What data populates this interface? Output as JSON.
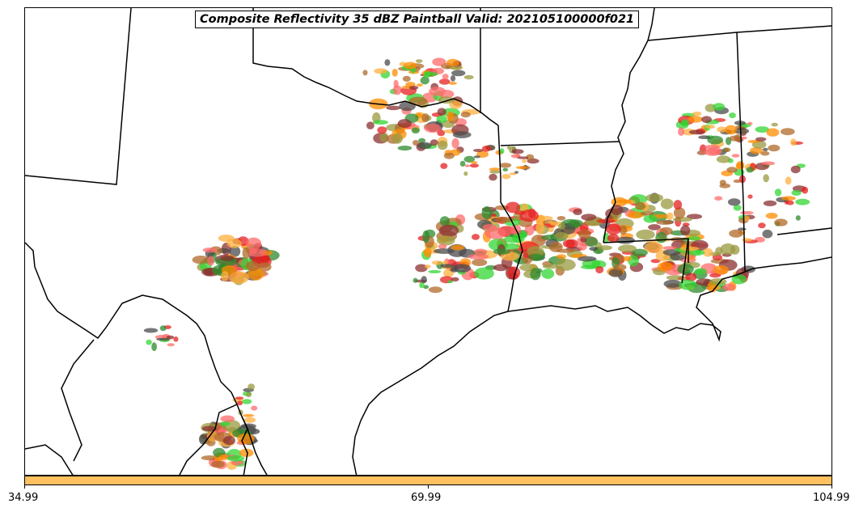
{
  "title": "Composite Reflectivity 35 dBZ Paintball Valid: 202105100000f021",
  "colorbar": {
    "color": "#ffc060",
    "ticks": [
      "34.99",
      "69.99",
      "104.99"
    ]
  },
  "colors": {
    "border": "#000000",
    "paint": [
      "#ff6b6b",
      "#e52020",
      "#ff8c00",
      "#ffb040",
      "#8b3030",
      "#9a9a40",
      "#2e8b2e",
      "#33d633",
      "#4b4b4b",
      "#b06a2a"
    ]
  }
}
